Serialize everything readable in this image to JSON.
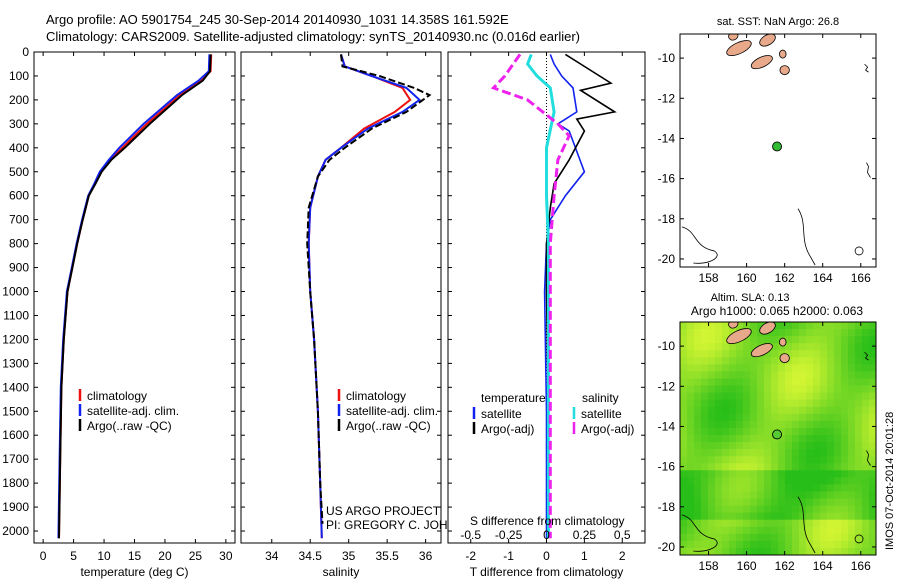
{
  "header": {
    "line1": "Argo profile: AO 5901754_245 30-Sep-2014 20140930_1031 14.358S 161.592E",
    "line2": "Climatology: CARS2009. Satellite-adjusted climatology: synTS_20140930.nc (0.016d earlier)"
  },
  "colors": {
    "climatology": "#ee1111",
    "satellite": "#1122ee",
    "argo": "#000000",
    "sal_satellite": "#22dddd",
    "sal_argo": "#ee22ee",
    "sst_land": "#e8a98a",
    "sla_green": "#33cc22",
    "sla_yellow": "#ccff22"
  },
  "chart_data": [
    {
      "type": "line",
      "xlabel": "temperature (deg C)",
      "ylabel": "",
      "xlim": [
        -1.5,
        31.5
      ],
      "ylim": [
        2050,
        0
      ],
      "xticks": [
        0,
        5,
        10,
        15,
        20,
        25,
        30
      ],
      "yticks": [
        0,
        100,
        200,
        300,
        400,
        500,
        600,
        700,
        800,
        900,
        1000,
        1100,
        1200,
        1300,
        1400,
        1500,
        1600,
        1700,
        1800,
        1900,
        2000
      ],
      "legend": [
        "climatology",
        "satellite-adj. clim.",
        "Argo(..raw -QC)"
      ],
      "series": [
        {
          "name": "climatology",
          "x": [
            27.6,
            27.5,
            26,
            22.5,
            17,
            13,
            11,
            9.5,
            8.5,
            7.5,
            6.5,
            5.6,
            4.8,
            4,
            3.4,
            3,
            2.8,
            2.6
          ],
          "y": [
            10,
            80,
            120,
            180,
            300,
            400,
            450,
            500,
            550,
            600,
            700,
            800,
            900,
            1000,
            1200,
            1400,
            1700,
            2030
          ]
        },
        {
          "name": "satellite-adj. clim.",
          "x": [
            27.3,
            27.2,
            25.5,
            22,
            16.5,
            12.5,
            10.8,
            9.3,
            8.4,
            7.4,
            6.4,
            5.5,
            4.7,
            3.9,
            3.3,
            2.9,
            2.7,
            2.5
          ],
          "y": [
            10,
            80,
            120,
            180,
            300,
            400,
            450,
            500,
            550,
            600,
            700,
            800,
            900,
            1000,
            1200,
            1400,
            1700,
            2030
          ]
        },
        {
          "name": "Argo(..raw -QC)",
          "x": [
            27.5,
            27.4,
            26.2,
            22.8,
            17.5,
            13.4,
            11.2,
            9.6,
            8.6,
            7.5,
            6.5,
            5.6,
            4.8,
            4,
            3.4,
            3,
            2.8,
            2.6
          ],
          "y": [
            10,
            80,
            120,
            180,
            300,
            400,
            450,
            500,
            550,
            600,
            700,
            800,
            900,
            1000,
            1200,
            1400,
            1700,
            2030
          ]
        }
      ]
    },
    {
      "type": "line",
      "xlabel": "salinity",
      "ylabel": "",
      "xlim": [
        33.6,
        36.2
      ],
      "ylim": [
        2050,
        0
      ],
      "xticks": [
        34,
        34.5,
        35,
        35.5,
        36
      ],
      "legend": [
        "climatology",
        "satellite-adj. clim.",
        "Argo(..raw -QC)"
      ],
      "annotation": [
        "US ARGO PROJECT",
        "PI: GREGORY C. JOHNSON"
      ],
      "series": [
        {
          "name": "climatology",
          "x": [
            34.9,
            34.95,
            35.3,
            35.7,
            35.8,
            35.6,
            35.2,
            34.9,
            34.7,
            34.6,
            34.5,
            34.48,
            34.5,
            34.55,
            34.6,
            34.63,
            34.65
          ],
          "y": [
            10,
            60,
            100,
            150,
            200,
            250,
            320,
            400,
            450,
            520,
            650,
            800,
            1000,
            1200,
            1500,
            1800,
            2030
          ]
        },
        {
          "name": "satellite-adj. clim.",
          "x": [
            34.9,
            34.95,
            35.3,
            35.75,
            35.92,
            35.7,
            35.25,
            34.9,
            34.7,
            34.6,
            34.5,
            34.48,
            34.5,
            34.55,
            34.6,
            34.63,
            34.65
          ],
          "y": [
            10,
            60,
            100,
            150,
            200,
            250,
            320,
            400,
            450,
            520,
            650,
            800,
            1000,
            1200,
            1500,
            1800,
            2030
          ]
        },
        {
          "name": "Argo(..raw -QC)",
          "x": [
            34.9,
            34.92,
            35.4,
            35.85,
            36.05,
            35.75,
            35.3,
            34.95,
            34.75,
            34.6,
            34.48,
            34.46,
            34.5,
            34.55,
            34.6,
            34.63,
            34.66
          ],
          "y": [
            10,
            60,
            100,
            150,
            180,
            250,
            320,
            400,
            450,
            520,
            650,
            800,
            1000,
            1200,
            1500,
            1800,
            1970
          ]
        }
      ]
    },
    {
      "type": "line",
      "xlabel": "T difference from climatology",
      "xlabel_top": "S difference from climatology",
      "xlim": [
        -2.6,
        2.6
      ],
      "ylim": [
        2050,
        0
      ],
      "xticks": [
        -2,
        -1,
        0,
        1,
        2
      ],
      "xticks_s": [
        -0.5,
        -0.25,
        0,
        0.25,
        0.5
      ],
      "legend_temperature": [
        "temperature",
        "satellite",
        "Argo(-adj)"
      ],
      "legend_salinity": [
        "salinity",
        "satellite",
        "Argo(-adj)"
      ],
      "series": [
        {
          "name": "satellite",
          "x": [
            0.1,
            0.2,
            0.4,
            0.7,
            0.8,
            0.3,
            0.6,
            1.0,
            0.5,
            0.1,
            0,
            -0.05,
            0,
            0
          ],
          "y": [
            10,
            50,
            100,
            150,
            250,
            300,
            330,
            500,
            600,
            700,
            800,
            1000,
            1500,
            2030
          ]
        },
        {
          "name": "Argo(-adj)",
          "x": [
            0.5,
            0.9,
            1.7,
            0.9,
            1.8,
            0.8,
            1.0,
            0.6,
            0.2,
            0.1,
            0,
            0,
            0.05,
            0.05
          ],
          "y": [
            10,
            50,
            130,
            160,
            250,
            280,
            330,
            450,
            550,
            650,
            800,
            1000,
            1500,
            2030
          ]
        },
        {
          "name": "satellite",
          "x": [
            -0.4,
            -0.5,
            -0.25,
            0.1,
            0.2,
            0,
            0,
            0.05,
            0.05,
            0.05,
            0.05
          ],
          "y": [
            10,
            50,
            100,
            150,
            250,
            400,
            600,
            800,
            1200,
            1600,
            2030
          ]
        },
        {
          "name": "Argo(-adj)",
          "x": [
            -0.7,
            -1.1,
            -1.4,
            -0.5,
            0.3,
            0.6,
            0.3,
            0.2,
            0.1,
            0.1,
            0.1
          ],
          "y": [
            10,
            100,
            150,
            200,
            300,
            350,
            450,
            600,
            800,
            1500,
            2030
          ]
        }
      ]
    },
    {
      "type": "heatmap",
      "title": "sat. SST: NaN Argo: 26.8",
      "xlim": [
        156.5,
        166.8
      ],
      "ylim": [
        -20.4,
        -8.8
      ],
      "xticks": [
        158,
        160,
        162,
        164,
        166
      ],
      "yticks": [
        -10,
        -12,
        -14,
        -16,
        -18,
        -20
      ],
      "argo_position": {
        "lon": 161.6,
        "lat": -14.4
      }
    },
    {
      "type": "heatmap",
      "title_line1": "Altim. SLA: 0.13",
      "title_line2": "Argo h1000: 0.065 h2000: 0.063",
      "side_label": "IMOS 07-Oct-2014 20:01:28",
      "xlim": [
        156.5,
        166.8
      ],
      "ylim": [
        -20.4,
        -8.8
      ],
      "xticks": [
        158,
        160,
        162,
        164,
        166
      ],
      "yticks": [
        -10,
        -12,
        -14,
        -16,
        -18,
        -20
      ],
      "argo_position": {
        "lon": 161.6,
        "lat": -14.4
      }
    }
  ]
}
